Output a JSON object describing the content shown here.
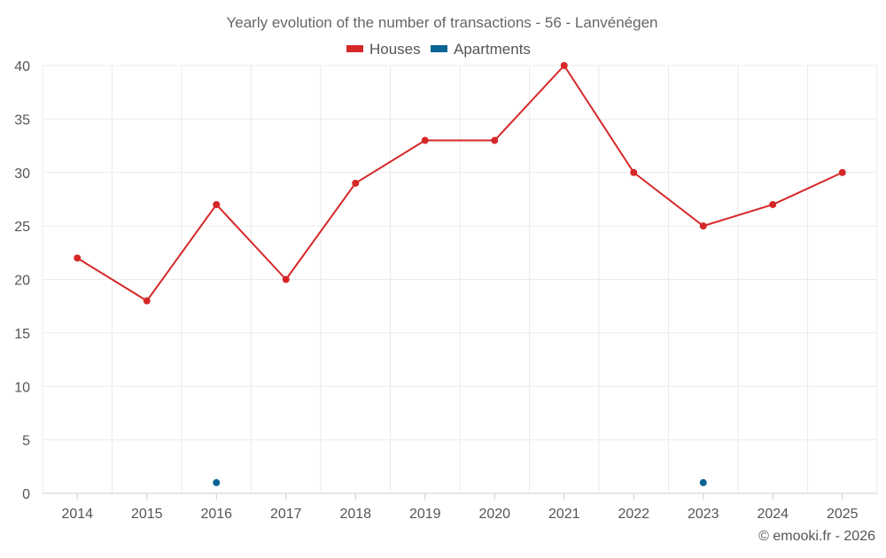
{
  "chart_data": {
    "type": "line",
    "title": "Yearly evolution of the number of transactions - 56 - Lanvénégen",
    "x": [
      "2014",
      "2015",
      "2016",
      "2017",
      "2018",
      "2019",
      "2020",
      "2021",
      "2022",
      "2023",
      "2024",
      "2025"
    ],
    "yticks": [
      "0",
      "5",
      "10",
      "15",
      "20",
      "25",
      "30",
      "35",
      "40"
    ],
    "ylim": [
      0,
      40
    ],
    "grid": true,
    "legend_position": "top-center",
    "series": [
      {
        "name": "Houses",
        "color": "#d62728",
        "values": [
          22,
          18,
          27,
          20,
          29,
          33,
          33,
          40,
          30,
          25,
          27,
          30
        ]
      },
      {
        "name": "Apartments",
        "color": "#0b6494",
        "values": [
          null,
          null,
          1,
          null,
          null,
          null,
          null,
          null,
          null,
          1,
          null,
          null
        ]
      }
    ],
    "credit": "© emooki.fr - 2026"
  }
}
